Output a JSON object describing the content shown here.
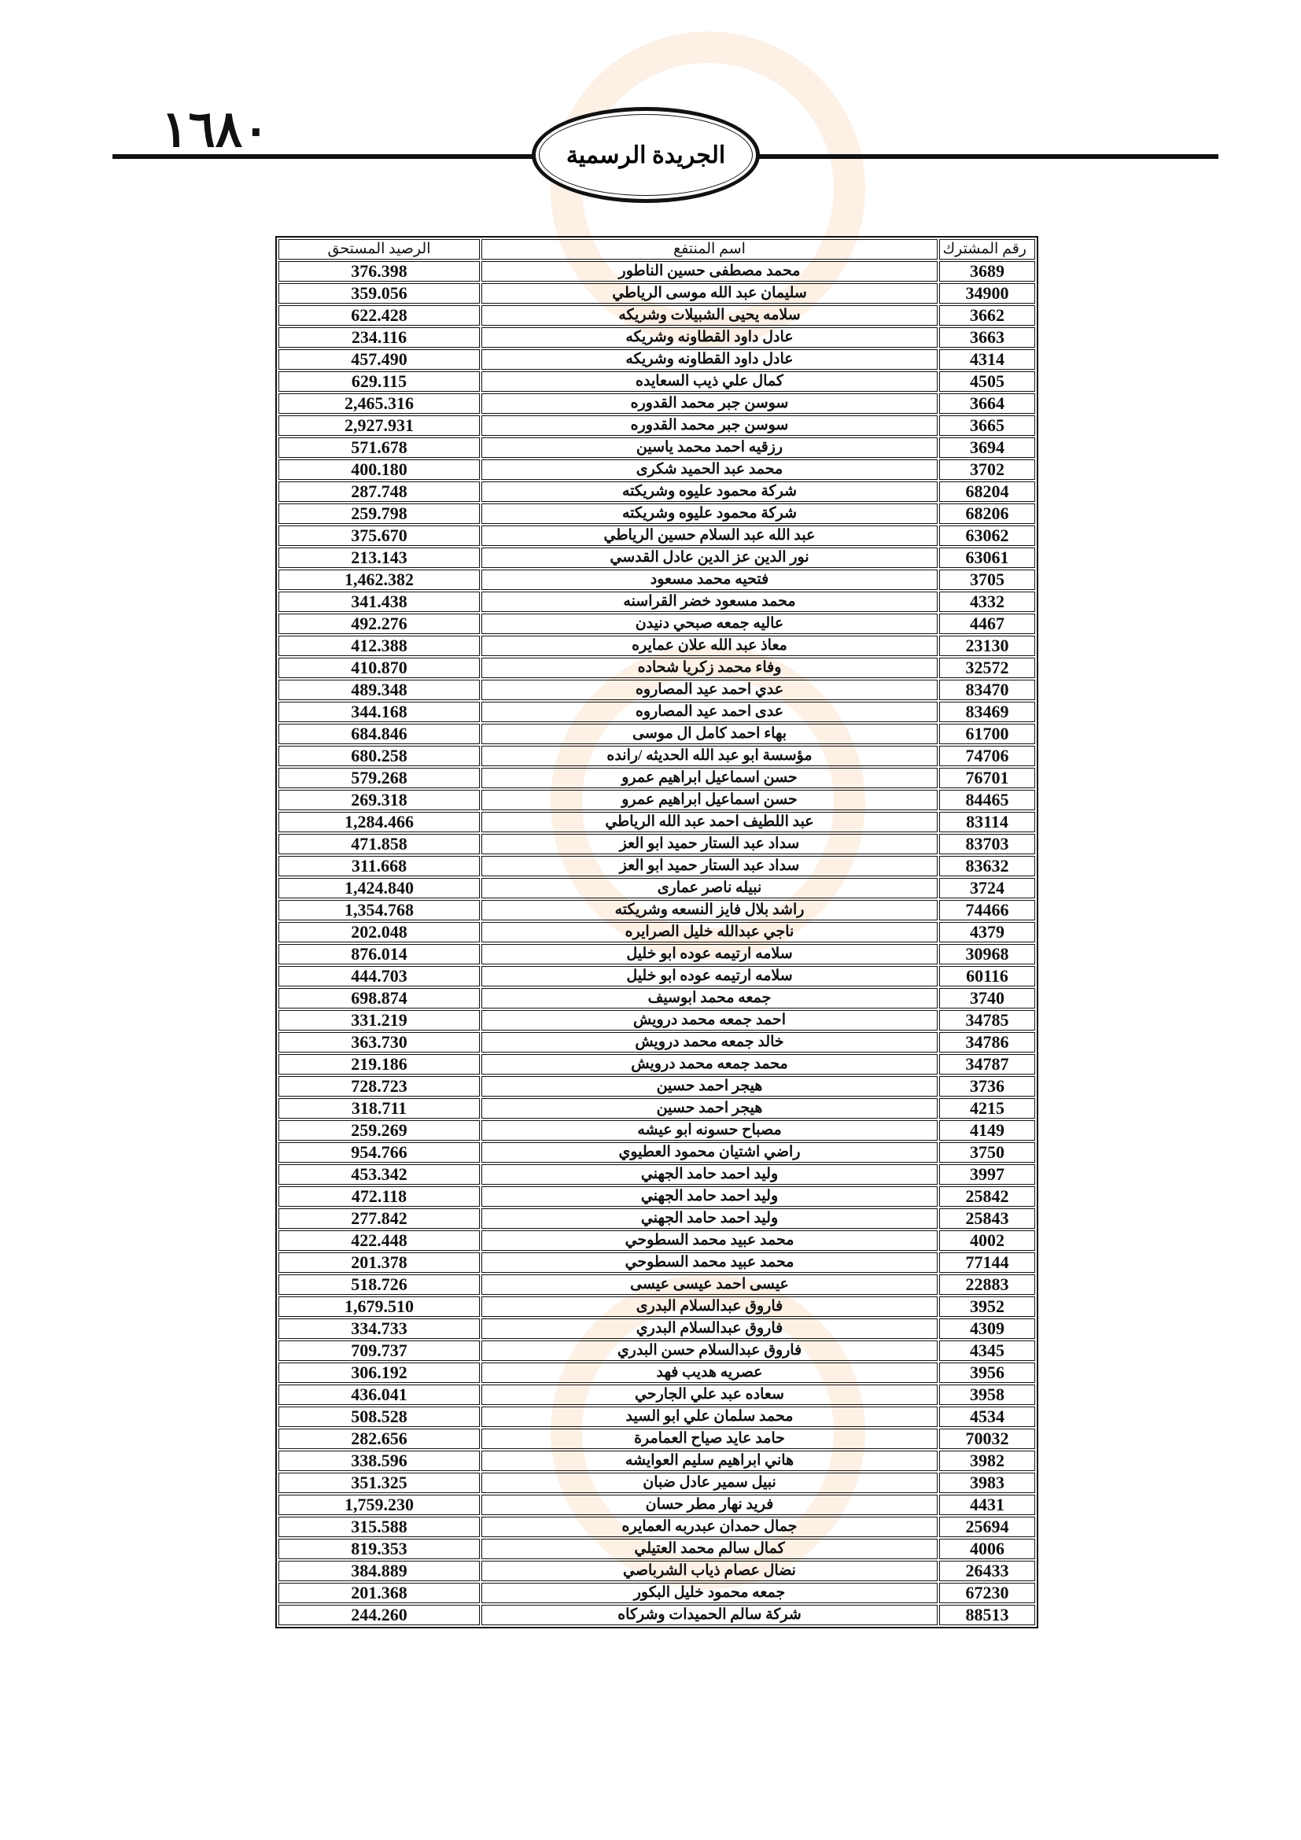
{
  "header": {
    "page_number": "١٦٨٠",
    "publication_title": "الجريدة الرسمية"
  },
  "table": {
    "columns": [
      "رقم المشترك",
      "اسم المنتفع",
      "الرصيد المستحق"
    ],
    "rows": [
      [
        "3689",
        "محمد مصطفى حسين الناطور",
        "376.398"
      ],
      [
        "34900",
        "سليمان عبد الله موسى الرياطي",
        "359.056"
      ],
      [
        "3662",
        "سلامه يحيى الشبيلات وشريكه",
        "622.428"
      ],
      [
        "3663",
        "عادل داود القطاونه وشريكه",
        "234.116"
      ],
      [
        "4314",
        "عادل داود القطاونه وشريكه",
        "457.490"
      ],
      [
        "4505",
        "كمال علي ذيب السعايده",
        "629.115"
      ],
      [
        "3664",
        "سوسن جبر محمد القدوره",
        "2,465.316"
      ],
      [
        "3665",
        "سوسن جبر محمد القدوره",
        "2,927.931"
      ],
      [
        "3694",
        "رزقيه احمد محمد ياسين",
        "571.678"
      ],
      [
        "3702",
        "محمد عبد الحميد شكرى",
        "400.180"
      ],
      [
        "68204",
        "شركة محمود عليوه وشريكته",
        "287.748"
      ],
      [
        "68206",
        "شركة محمود عليوه وشريكته",
        "259.798"
      ],
      [
        "63062",
        "عبد الله عبد السلام حسين الرياطي",
        "375.670"
      ],
      [
        "63061",
        "نور الدين عز الدين عادل القدسي",
        "213.143"
      ],
      [
        "3705",
        "فتحيه محمد مسعود",
        "1,462.382"
      ],
      [
        "4332",
        "محمد مسعود خضر القراسنه",
        "341.438"
      ],
      [
        "4467",
        "عاليه جمعه صبحي دنيدن",
        "492.276"
      ],
      [
        "23130",
        "معاذ عبد الله علان عمايره",
        "412.388"
      ],
      [
        "32572",
        "وفاء محمد زكريا شحاده",
        "410.870"
      ],
      [
        "83470",
        "عدي احمد عيد المصاروه",
        "489.348"
      ],
      [
        "83469",
        "عدى احمد عيد المصاروه",
        "344.168"
      ],
      [
        "61700",
        "بهاء احمد كامل ال موسى",
        "684.846"
      ],
      [
        "74706",
        "مؤسسة ابو عبد الله الحديثه /رانده",
        "680.258"
      ],
      [
        "76701",
        "حسن اسماعيل ابراهيم عمرو",
        "579.268"
      ],
      [
        "84465",
        "حسن اسماعيل ابراهيم عمرو",
        "269.318"
      ],
      [
        "83114",
        "عبد اللطيف احمد عبد الله الرياطي",
        "1,284.466"
      ],
      [
        "83703",
        "سداد عبد الستار حميد ابو العز",
        "471.858"
      ],
      [
        "83632",
        "سداد عبد الستار حميد ابو العز",
        "311.668"
      ],
      [
        "3724",
        "نبيله ناصر عمارى",
        "1,424.840"
      ],
      [
        "74466",
        "راشد بلال فايز النسعه وشريكته",
        "1,354.768"
      ],
      [
        "4379",
        "ناجي عبدالله خليل الصرايره",
        "202.048"
      ],
      [
        "30968",
        "سلامه ارتيمه عوده ابو خليل",
        "876.014"
      ],
      [
        "60116",
        "سلامه ارتيمه عوده ابو خليل",
        "444.703"
      ],
      [
        "3740",
        "جمعه محمد ابوسيف",
        "698.874"
      ],
      [
        "34785",
        "احمد جمعه محمد درويش",
        "331.219"
      ],
      [
        "34786",
        "خالد جمعه محمد درويش",
        "363.730"
      ],
      [
        "34787",
        "محمد جمعه محمد درويش",
        "219.186"
      ],
      [
        "3736",
        "هيجر احمد حسين",
        "728.723"
      ],
      [
        "4215",
        "هيجر احمد حسين",
        "318.711"
      ],
      [
        "4149",
        "مصباح حسونه ابو عيشه",
        "259.269"
      ],
      [
        "3750",
        "راضي اشتيان محمود العطيوي",
        "954.766"
      ],
      [
        "3997",
        "وليد احمد حامد الجهني",
        "453.342"
      ],
      [
        "25842",
        "وليد احمد حامد الجهني",
        "472.118"
      ],
      [
        "25843",
        "وليد احمد حامد الجهني",
        "277.842"
      ],
      [
        "4002",
        "محمد عبيد محمد السطوحي",
        "422.448"
      ],
      [
        "77144",
        "محمد عبيد محمد السطوحي",
        "201.378"
      ],
      [
        "22883",
        "عيسى احمد عيسى عيسى",
        "518.726"
      ],
      [
        "3952",
        "فاروق عبدالسلام البدرى",
        "1,679.510"
      ],
      [
        "4309",
        "فاروق عبدالسلام البدري",
        "334.733"
      ],
      [
        "4345",
        "فاروق عبدالسلام حسن البدري",
        "709.737"
      ],
      [
        "3956",
        "عصريه هديب فهد",
        "306.192"
      ],
      [
        "3958",
        "سعاده عبد علي الجارحي",
        "436.041"
      ],
      [
        "4534",
        "محمد سلمان علي ابو السيد",
        "508.528"
      ],
      [
        "70032",
        "حامد عايد صياح العمامرة",
        "282.656"
      ],
      [
        "3982",
        "هاني ابراهيم سليم العوايشه",
        "338.596"
      ],
      [
        "3983",
        "نبيل سمير عادل ضبان",
        "351.325"
      ],
      [
        "4431",
        "فريد نهار مطر حسان",
        "1,759.230"
      ],
      [
        "25694",
        "جمال حمدان عبدربه العمايره",
        "315.588"
      ],
      [
        "4006",
        "كمال سالم محمد العتيلي",
        "819.353"
      ],
      [
        "26433",
        "نضال عصام ذياب الشرباصي",
        "384.889"
      ],
      [
        "67230",
        "جمعه محمود خليل البكور",
        "201.368"
      ],
      [
        "88513",
        "شركة سالم الحميدات وشركاه",
        "244.260"
      ]
    ]
  }
}
